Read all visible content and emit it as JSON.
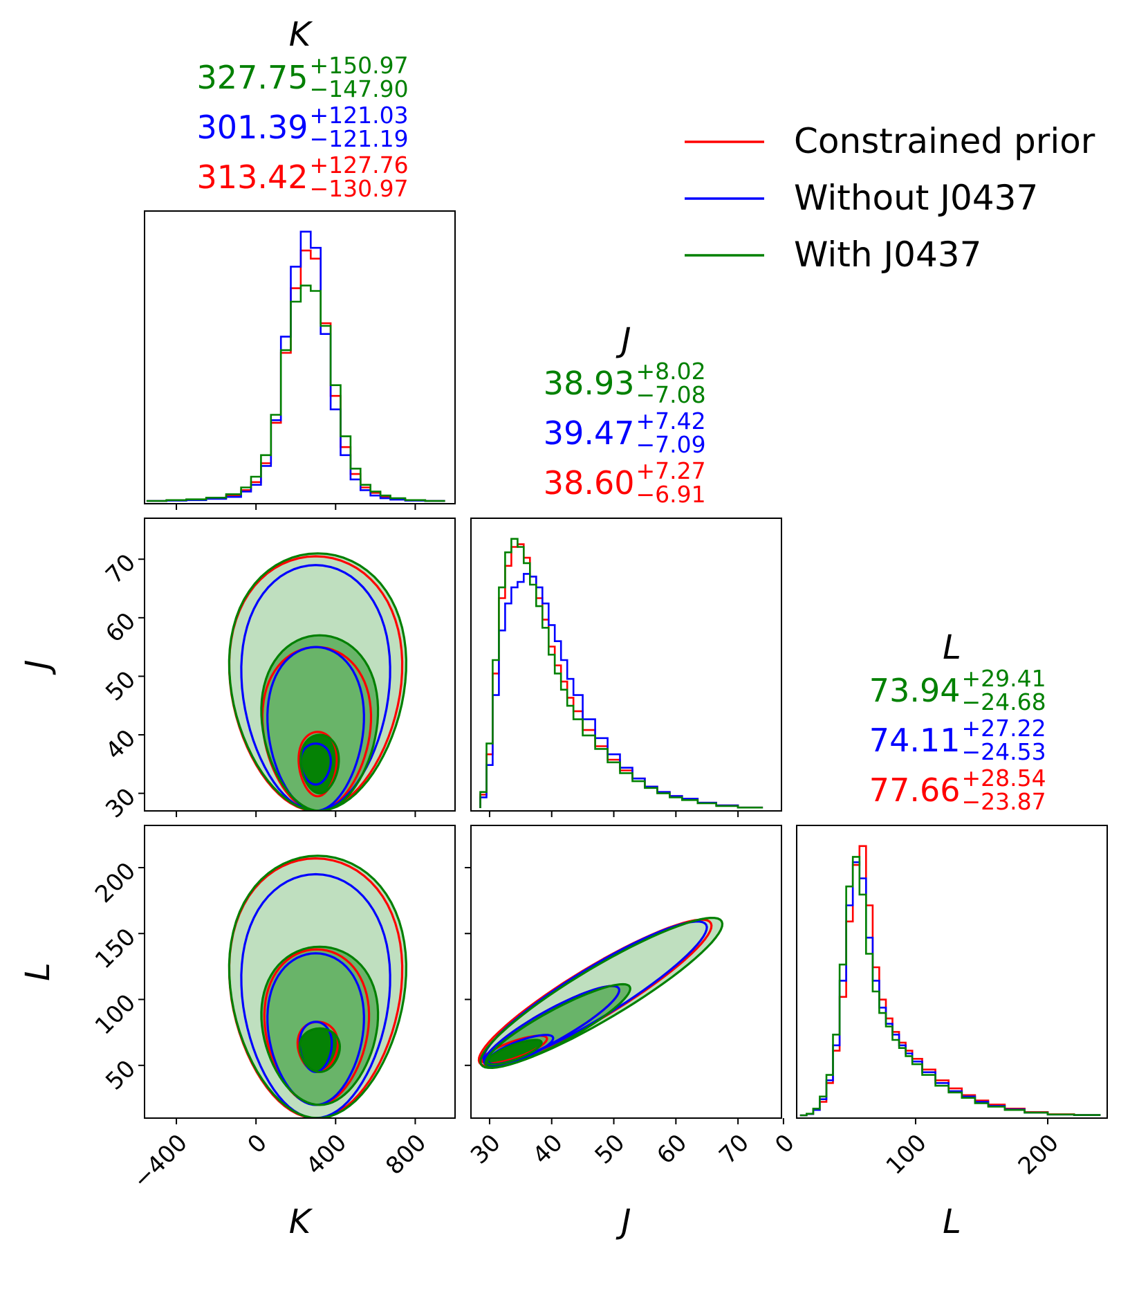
{
  "chart_data": {
    "type": "corner",
    "parameters": [
      "K",
      "J",
      "L"
    ],
    "legend": {
      "placement": "top-right",
      "entries": [
        {
          "name": "Constrained prior",
          "color": "#ff0000"
        },
        {
          "name": "Without J0437",
          "color": "#0000ff"
        },
        {
          "name": "With J0437",
          "color": "#008000"
        }
      ]
    },
    "titles": {
      "K": [
        {
          "series": "With J0437",
          "color": "#008000",
          "median": "327.75",
          "plus": "+150.97",
          "minus": "−147.90"
        },
        {
          "series": "Without J0437",
          "color": "#0000ff",
          "median": "301.39",
          "plus": "+121.03",
          "minus": "−121.19"
        },
        {
          "series": "Constrained prior",
          "color": "#ff0000",
          "median": "313.42",
          "plus": "+127.76",
          "minus": "−130.97"
        }
      ],
      "J": [
        {
          "series": "With J0437",
          "color": "#008000",
          "median": "38.93",
          "plus": "+8.02",
          "minus": "−7.08"
        },
        {
          "series": "Without J0437",
          "color": "#0000ff",
          "median": "39.47",
          "plus": "+7.42",
          "minus": "−7.09"
        },
        {
          "series": "Constrained prior",
          "color": "#ff0000",
          "median": "38.60",
          "plus": "+7.27",
          "minus": "−6.91"
        }
      ],
      "L": [
        {
          "series": "With J0437",
          "color": "#008000",
          "median": "73.94",
          "plus": "+29.41",
          "minus": "−24.68"
        },
        {
          "series": "Without J0437",
          "color": "#0000ff",
          "median": "74.11",
          "plus": "+27.22",
          "minus": "−24.53"
        },
        {
          "series": "Constrained prior",
          "color": "#ff0000",
          "median": "77.66",
          "plus": "+28.54",
          "minus": "−23.87"
        }
      ]
    },
    "axes": {
      "K": {
        "range": [
          -560,
          1000
        ],
        "ticks": [
          -400,
          0,
          400,
          800
        ],
        "tick_labels": [
          "−400",
          "0",
          "400",
          "800"
        ]
      },
      "J": {
        "range": [
          27,
          77
        ],
        "ticks": [
          30,
          40,
          50,
          60,
          70
        ],
        "tick_labels": [
          "30",
          "40",
          "50",
          "60",
          "70"
        ]
      },
      "L": {
        "range": [
          10,
          245
        ],
        "ticks": [
          0,
          100,
          200
        ],
        "tick_labels": [
          "0",
          "100",
          "200"
        ],
        "y_ticks": [
          50,
          100,
          150,
          200
        ],
        "y_tick_labels": [
          "50",
          "100",
          "150",
          "200"
        ]
      }
    },
    "histograms": {
      "K": {
        "x": [
          -500,
          -400,
          -300,
          -200,
          -100,
          -50,
          0,
          50,
          100,
          150,
          200,
          250,
          300,
          350,
          400,
          450,
          500,
          550,
          600,
          650,
          700,
          800,
          900
        ],
        "series": [
          {
            "name": "Constrained prior",
            "values": [
              0.0,
              0.002,
              0.004,
              0.01,
              0.02,
              0.04,
              0.07,
              0.14,
              0.29,
              0.55,
              0.79,
              0.93,
              0.9,
              0.66,
              0.39,
              0.2,
              0.1,
              0.05,
              0.03,
              0.015,
              0.007,
              0.002,
              0.0
            ]
          },
          {
            "name": "Without J0437",
            "values": [
              0.0,
              0.001,
              0.003,
              0.008,
              0.015,
              0.035,
              0.06,
              0.13,
              0.3,
              0.61,
              0.87,
              1.0,
              0.94,
              0.62,
              0.34,
              0.17,
              0.08,
              0.04,
              0.02,
              0.01,
              0.005,
              0.001,
              0.0
            ]
          },
          {
            "name": "With J0437",
            "values": [
              0.0,
              0.003,
              0.006,
              0.012,
              0.025,
              0.05,
              0.09,
              0.17,
              0.32,
              0.56,
              0.74,
              0.8,
              0.78,
              0.65,
              0.43,
              0.24,
              0.12,
              0.06,
              0.035,
              0.02,
              0.01,
              0.003,
              0.0
            ]
          }
        ]
      },
      "J": {
        "x": [
          29,
          30,
          31,
          32,
          33,
          34,
          35,
          36,
          37,
          38,
          39,
          40,
          41,
          42,
          43,
          44,
          46,
          48,
          50,
          52,
          54,
          56,
          58,
          60,
          62,
          65,
          68,
          72
        ],
        "series": [
          {
            "name": "Constrained prior",
            "values": [
              0.05,
              0.2,
              0.5,
              0.78,
              0.9,
              0.97,
              0.98,
              0.93,
              0.86,
              0.78,
              0.7,
              0.6,
              0.53,
              0.47,
              0.41,
              0.36,
              0.29,
              0.23,
              0.18,
              0.14,
              0.11,
              0.08,
              0.06,
              0.045,
              0.035,
              0.02,
              0.01,
              0.002
            ]
          },
          {
            "name": "Without J0437",
            "values": [
              0.04,
              0.16,
              0.42,
              0.66,
              0.76,
              0.82,
              0.84,
              0.87,
              0.86,
              0.82,
              0.76,
              0.68,
              0.62,
              0.55,
              0.48,
              0.42,
              0.33,
              0.26,
              0.2,
              0.15,
              0.11,
              0.08,
              0.06,
              0.045,
              0.035,
              0.02,
              0.01,
              0.002
            ]
          },
          {
            "name": "With J0437",
            "values": [
              0.06,
              0.24,
              0.55,
              0.82,
              0.95,
              1.0,
              0.97,
              0.91,
              0.83,
              0.75,
              0.67,
              0.57,
              0.5,
              0.44,
              0.38,
              0.33,
              0.27,
              0.22,
              0.17,
              0.13,
              0.1,
              0.075,
              0.055,
              0.04,
              0.03,
              0.018,
              0.008,
              0.002
            ]
          }
        ]
      },
      "L": {
        "x": [
          15,
          20,
          25,
          30,
          35,
          40,
          45,
          50,
          55,
          60,
          65,
          70,
          75,
          80,
          85,
          90,
          95,
          100,
          110,
          120,
          130,
          140,
          150,
          160,
          175,
          190,
          210,
          230
        ],
        "series": [
          {
            "name": "Constrained prior",
            "values": [
              0.0,
              0.005,
              0.02,
              0.05,
              0.12,
              0.24,
              0.44,
              0.72,
              0.93,
              1.0,
              0.78,
              0.55,
              0.43,
              0.36,
              0.31,
              0.27,
              0.24,
              0.21,
              0.17,
              0.13,
              0.1,
              0.075,
              0.055,
              0.04,
              0.025,
              0.012,
              0.004,
              0.001
            ]
          },
          {
            "name": "Without J0437",
            "values": [
              0.0,
              0.005,
              0.02,
              0.06,
              0.13,
              0.26,
              0.5,
              0.78,
              0.94,
              0.88,
              0.66,
              0.5,
              0.4,
              0.34,
              0.3,
              0.26,
              0.23,
              0.2,
              0.16,
              0.12,
              0.09,
              0.07,
              0.05,
              0.035,
              0.022,
              0.01,
              0.003,
              0.001
            ]
          },
          {
            "name": "With J0437",
            "values": [
              0.0,
              0.006,
              0.025,
              0.07,
              0.15,
              0.3,
              0.56,
              0.85,
              0.96,
              0.82,
              0.6,
              0.46,
              0.38,
              0.33,
              0.28,
              0.25,
              0.22,
              0.19,
              0.15,
              0.11,
              0.085,
              0.065,
              0.045,
              0.032,
              0.02,
              0.01,
              0.003,
              0.001
            ]
          }
        ]
      }
    },
    "contours_2d": {
      "levels": [
        "1-sigma",
        "2-sigma",
        "3-sigma"
      ],
      "K-J": {
        "Constrained prior": [
          {
            "center": [
              310,
              35
            ],
            "spread": [
              95,
              4.5
            ],
            "top": 40.5,
            "bottom": 29.5
          },
          {
            "center": [
              305,
              40
            ],
            "spread": [
              270,
              15
            ],
            "top": 55,
            "bottom": 27
          },
          {
            "center": [
              300,
              45
            ],
            "spread": [
              430,
              26
            ],
            "top": 70.5,
            "bottom": 27
          }
        ],
        "Without J0437": [
          {
            "center": [
              300,
              35
            ],
            "spread": [
              75,
              3.5
            ],
            "top": 38.5,
            "bottom": 31.5
          },
          {
            "center": [
              300,
              40
            ],
            "spread": [
              240,
              15
            ],
            "top": 55,
            "bottom": 27
          },
          {
            "center": [
              300,
              45
            ],
            "spread": [
              370,
              24
            ],
            "top": 69,
            "bottom": 27
          }
        ],
        "With J0437": [
          {
            "center": [
              320,
              35
            ],
            "spread": [
              95,
              5
            ],
            "top": 40,
            "bottom": 30
          },
          {
            "center": [
              320,
              40
            ],
            "spread": [
              290,
              17
            ],
            "top": 57,
            "bottom": 27
          },
          {
            "center": [
              310,
              45
            ],
            "spread": [
              440,
              26
            ],
            "top": 71,
            "bottom": 27
          }
        ]
      },
      "K-L": {
        "Constrained prior": [
          {
            "center": [
              310,
              65
            ],
            "spread": [
              100,
              18
            ],
            "top": 83,
            "bottom": 45
          },
          {
            "center": [
              305,
              75
            ],
            "spread": [
              260,
              63
            ],
            "top": 138,
            "bottom": 20
          },
          {
            "center": [
              300,
              95
            ],
            "spread": [
              430,
              110
            ],
            "top": 207,
            "bottom": 10
          }
        ],
        "Without J0437": [
          {
            "center": [
              300,
              63
            ],
            "spread": [
              80,
              20
            ],
            "top": 83,
            "bottom": 45
          },
          {
            "center": [
              300,
              75
            ],
            "spread": [
              240,
              60
            ],
            "top": 135,
            "bottom": 20
          },
          {
            "center": [
              300,
              95
            ],
            "spread": [
              370,
              100
            ],
            "top": 195,
            "bottom": 10
          }
        ],
        "With J0437": [
          {
            "center": [
              320,
              62
            ],
            "spread": [
              100,
              16
            ],
            "top": 78,
            "bottom": 45
          },
          {
            "center": [
              320,
              75
            ],
            "spread": [
              290,
              65
            ],
            "top": 140,
            "bottom": 20
          },
          {
            "center": [
              310,
              95
            ],
            "spread": [
              440,
              112
            ],
            "top": 209,
            "bottom": 10
          }
        ]
      },
      "J-L": {
        "Constrained prior": [
          {
            "center": [
              34,
              62
            ],
            "spread": [
              6,
              18
            ],
            "correlation": 0.6
          },
          {
            "center": [
              40,
              80
            ],
            "spread": [
              14,
              45
            ],
            "correlation": 0.85
          },
          {
            "center": [
              47,
              105
            ],
            "spread": [
              25,
              80
            ],
            "correlation": 0.92
          }
        ],
        "Without J0437": [
          {
            "center": [
              35,
              62
            ],
            "spread": [
              6,
              19
            ],
            "correlation": 0.6
          },
          {
            "center": [
              40,
              80
            ],
            "spread": [
              14,
              45
            ],
            "correlation": 0.85
          },
          {
            "center": [
              47,
              105
            ],
            "spread": [
              24,
              78
            ],
            "correlation": 0.92
          }
        ],
        "With J0437": [
          {
            "center": [
              34,
              60
            ],
            "spread": [
              5,
              16
            ],
            "correlation": 0.6
          },
          {
            "center": [
              41,
              80
            ],
            "spread": [
              15,
              47
            ],
            "correlation": 0.85
          },
          {
            "center": [
              48,
              105
            ],
            "spread": [
              26,
              82
            ],
            "correlation": 0.92
          }
        ]
      }
    }
  }
}
